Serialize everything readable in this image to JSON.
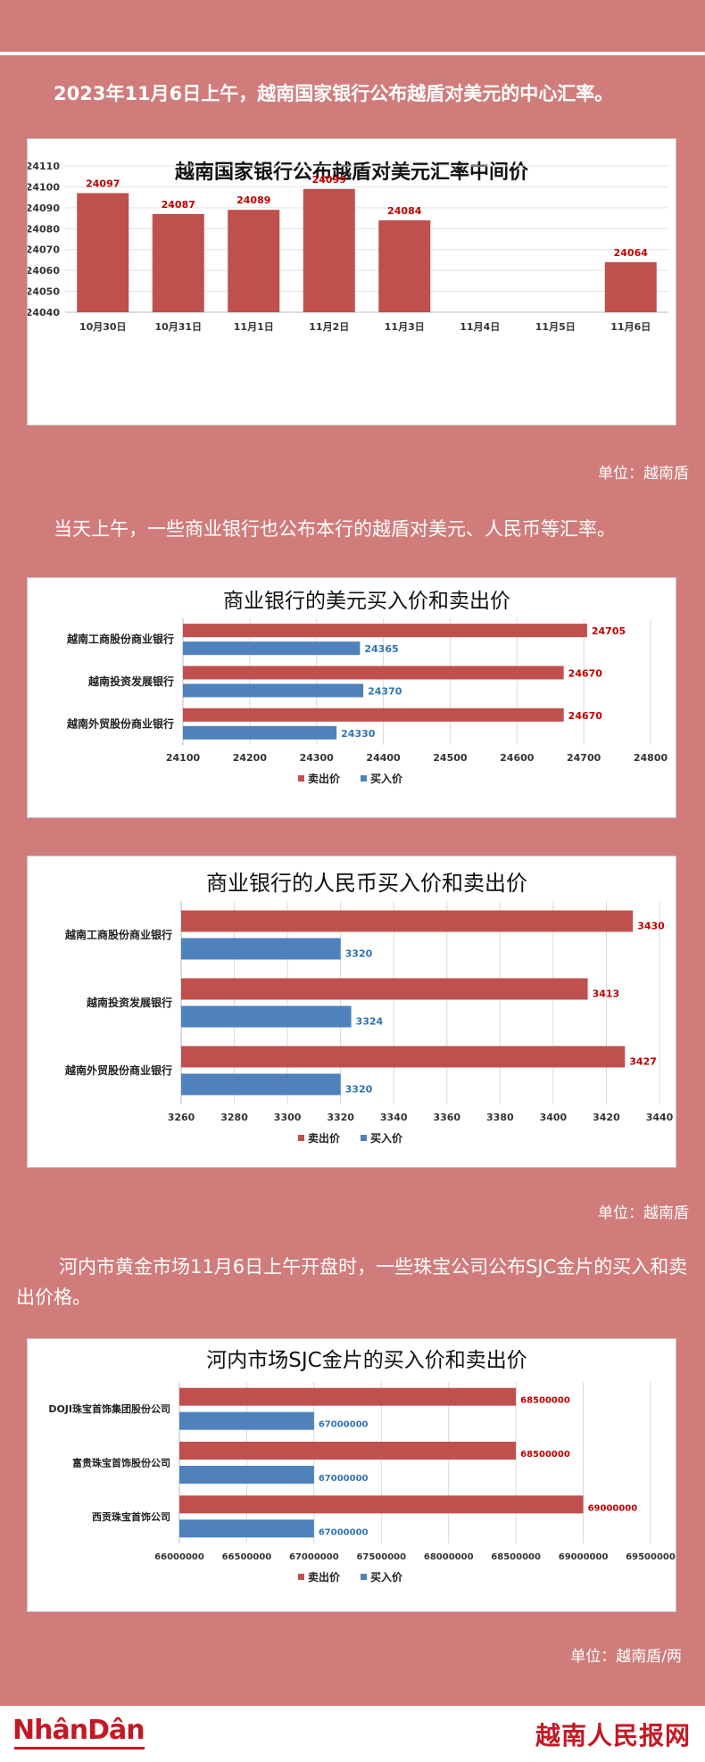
{
  "intro1": "2023年11月6日上午，越南国家银行公布越盾对美元的中心汇率。",
  "unit1": "单位：越南盾",
  "intro2": "当天上午，一些商业银行也公布本行的越盾对美元、人民币等汇率。",
  "unit2": "单位：越南盾",
  "intro3": "河内市黄金市场11月6日上午开盘时，一些珠宝公司公布SJC金片的买入和卖出价格。",
  "unit3": "单位：越南盾/两",
  "footer": {
    "left_logo": "NhânDân",
    "right_logo": "越南人民报网"
  },
  "colors": {
    "sell": "#c0504d",
    "buy": "#4f81bd",
    "sell_label": "#c00000",
    "buy_label": "#2e74b5",
    "bg": "#d07c7b"
  },
  "chart_data": [
    {
      "type": "bar",
      "title": "越南国家银行公布越盾对美元汇率中间价",
      "categories": [
        "10月30日",
        "10月31日",
        "11月1日",
        "11月2日",
        "11月3日",
        "11月4日",
        "11月5日",
        "11月6日"
      ],
      "values": [
        24097,
        24087,
        24089,
        24099,
        24084,
        null,
        null,
        24064
      ],
      "value_labels": [
        "24097",
        "24087",
        "24089",
        "24099",
        "24084",
        "",
        "",
        "24064"
      ],
      "ylim": [
        24040,
        24110
      ],
      "yticks": [
        "24040",
        "24050",
        "24060",
        "24070",
        "24080",
        "24090",
        "24100",
        "24110"
      ],
      "grid": true
    },
    {
      "type": "bar",
      "orientation": "horizontal",
      "title": "商业银行的美元买入价和卖出价",
      "categories": [
        "越南工商股份商业银行",
        "越南投资发展银行",
        "越南外贸股份商业银行"
      ],
      "series": [
        {
          "name": "卖出价",
          "values": [
            24705,
            24670,
            24670
          ],
          "labels": [
            "24705",
            "24670",
            "24670"
          ]
        },
        {
          "name": "买入价",
          "values": [
            24365,
            24370,
            24330
          ],
          "labels": [
            "24365",
            "24370",
            "24330"
          ]
        }
      ],
      "xlim": [
        24100,
        24800
      ],
      "xticks": [
        "24100",
        "24200",
        "24300",
        "24400",
        "24500",
        "24600",
        "24700",
        "24800"
      ],
      "legend": "bottom",
      "grid": true
    },
    {
      "type": "bar",
      "orientation": "horizontal",
      "title": "商业银行的人民币买入价和卖出价",
      "categories": [
        "越南工商股份商业银行",
        "越南投资发展银行",
        "越南外贸股份商业银行"
      ],
      "series": [
        {
          "name": "卖出价",
          "values": [
            3430,
            3413,
            3427
          ],
          "labels": [
            "3430",
            "3413",
            "3427"
          ]
        },
        {
          "name": "买入价",
          "values": [
            3320,
            3324,
            3320
          ],
          "labels": [
            "3320",
            "3324",
            "3320"
          ]
        }
      ],
      "xlim": [
        3260,
        3440
      ],
      "xticks": [
        "3260",
        "3280",
        "3300",
        "3320",
        "3340",
        "3360",
        "3380",
        "3400",
        "3420",
        "3440"
      ],
      "legend": "bottom",
      "grid": true
    },
    {
      "type": "bar",
      "orientation": "horizontal",
      "title": "河内市场SJC金片的买入价和卖出价",
      "categories": [
        "DOJI珠宝首饰集团股份公司",
        "富贵珠宝首饰股份公司",
        "西贡珠宝首饰公司"
      ],
      "series": [
        {
          "name": "卖出价",
          "values": [
            68500000,
            68500000,
            69000000
          ],
          "labels": [
            "68500000",
            "68500000",
            "69000000"
          ]
        },
        {
          "name": "买入价",
          "values": [
            67000000,
            67000000,
            67000000
          ],
          "labels": [
            "67000000",
            "67000000",
            "67000000"
          ]
        }
      ],
      "xlim": [
        66000000,
        69500000
      ],
      "xticks": [
        "66000000",
        "66500000",
        "67000000",
        "67500000",
        "68000000",
        "68500000",
        "69000000",
        "69500000"
      ],
      "legend": "bottom",
      "grid": true
    }
  ]
}
